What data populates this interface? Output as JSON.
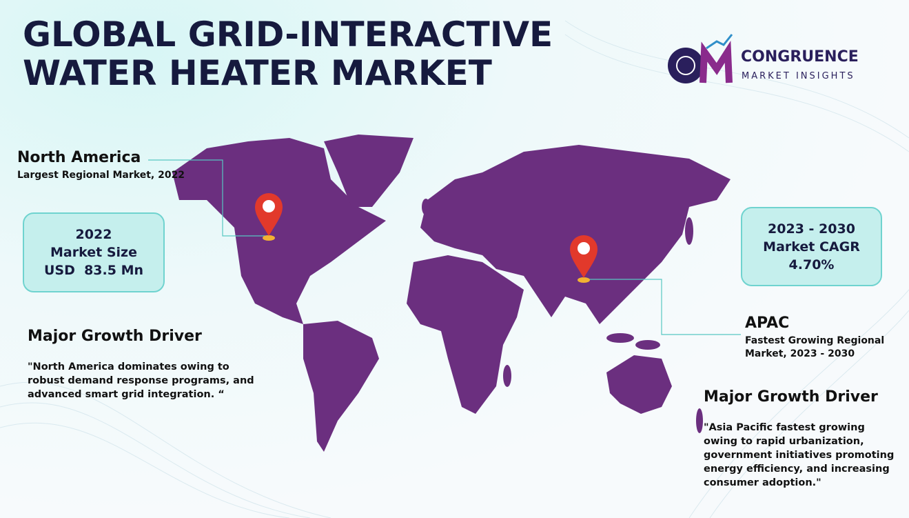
{
  "header": {
    "title_lines": [
      "GLOBAL GRID-INTERACTIVE",
      "WATER HEATER MARKET"
    ]
  },
  "logo": {
    "name": "CONGRUENCE",
    "tagline": "MARKET INSIGHTS"
  },
  "north_america": {
    "title": "North America",
    "subtitle": "Largest Regional Market, 2022"
  },
  "market_size_box": {
    "lines": [
      "2022",
      "Market Size",
      "USD  83.5 Mn"
    ]
  },
  "cagr_box": {
    "lines": [
      "2023 - 2030",
      "Market CAGR",
      "4.70%"
    ]
  },
  "apac": {
    "title": "APAC",
    "subtitle_lines": [
      "Fastest Growing Regional",
      "Market, 2023 - 2030"
    ]
  },
  "driver_left": {
    "title": "Major Growth Driver",
    "quote_lines": [
      "\"North America dominates owing to",
      "robust demand response programs, and",
      "advanced smart grid integration. “"
    ]
  },
  "driver_right": {
    "title": "Major Growth Driver",
    "quote_lines": [
      "\"Asia Pacific fastest growing",
      "owing to rapid urbanization,",
      "government initiatives promoting",
      "energy efficiency, and increasing",
      "consumer adoption.\""
    ]
  }
}
